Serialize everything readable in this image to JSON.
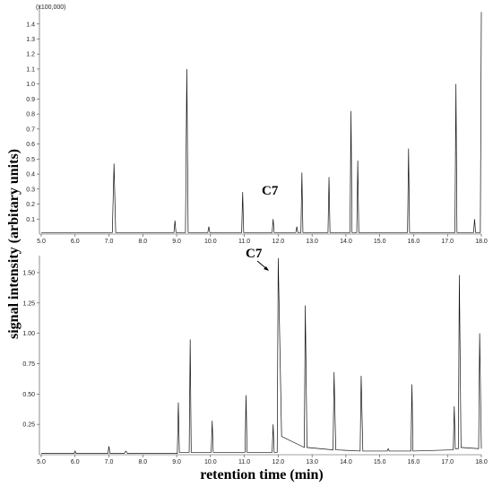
{
  "chart_data": [
    {
      "type": "line",
      "y_multiplier": "(x100,000)",
      "ylabel": "signal intensity (arbitary units)",
      "annotation": "C7",
      "x": [
        5.0,
        7.1,
        7.15,
        7.2,
        8.92,
        8.95,
        8.98,
        9.26,
        9.3,
        9.34,
        9.92,
        9.95,
        9.98,
        10.92,
        10.95,
        10.98,
        11.82,
        11.85,
        11.88,
        12.52,
        12.55,
        12.58,
        12.67,
        12.7,
        12.73,
        13.47,
        13.5,
        13.53,
        14.12,
        14.15,
        14.18,
        14.32,
        14.35,
        14.38,
        15.82,
        15.85,
        15.88,
        17.22,
        17.25,
        17.28,
        17.77,
        17.8,
        17.83,
        17.97,
        18.0
      ],
      "series": [
        {
          "color": "#111111",
          "values": [
            0.01,
            0.01,
            0.47,
            0.01,
            0.01,
            0.09,
            0.01,
            0.01,
            1.1,
            0.01,
            0.01,
            0.05,
            0.01,
            0.01,
            0.28,
            0.01,
            0.01,
            0.1,
            0.01,
            0.01,
            0.05,
            0.01,
            0.01,
            0.41,
            0.01,
            0.01,
            0.38,
            0.01,
            0.01,
            0.82,
            0.01,
            0.01,
            0.49,
            0.01,
            0.01,
            0.57,
            0.01,
            0.01,
            1.0,
            0.01,
            0.01,
            0.1,
            0.01,
            0.01,
            1.48
          ]
        }
      ],
      "xlim": [
        5.0,
        18.0
      ],
      "ylim": [
        0,
        1.53
      ],
      "xticks": [
        {
          "value": 5,
          "label": "5.0"
        },
        {
          "value": 6,
          "label": "6.0"
        },
        {
          "value": 7,
          "label": "7.0"
        },
        {
          "value": 8,
          "label": "8.0"
        },
        {
          "value": 9,
          "label": "9.0"
        },
        {
          "value": 10,
          "label": "10.0"
        },
        {
          "value": 11,
          "label": "11.0"
        },
        {
          "value": 12,
          "label": "12.0"
        },
        {
          "value": 13,
          "label": "13.0"
        },
        {
          "value": 14,
          "label": "14.0"
        },
        {
          "value": 15,
          "label": "15.0"
        },
        {
          "value": 16,
          "label": "16.0"
        },
        {
          "value": 17,
          "label": "17.0"
        },
        {
          "value": 18,
          "label": "18.0"
        }
      ],
      "yticks": [
        0.1,
        0.2,
        0.3,
        0.4,
        0.5,
        0.6,
        0.7,
        0.8,
        0.9,
        {
          "value": 1,
          "label": "1.0"
        },
        1.1,
        1.2,
        1.3,
        1.4
      ]
    },
    {
      "type": "line",
      "xlabel": "retention time (min)",
      "annotation": "C7",
      "x": [
        5.0,
        5.97,
        6.0,
        6.03,
        6.97,
        7.0,
        7.03,
        7.45,
        7.5,
        7.55,
        9.02,
        9.05,
        9.08,
        9.37,
        9.4,
        9.43,
        10.02,
        10.05,
        10.08,
        11.02,
        11.05,
        11.08,
        11.82,
        11.85,
        11.88,
        11.97,
        12.0,
        12.1,
        12.77,
        12.8,
        12.85,
        13.62,
        13.65,
        13.7,
        14.42,
        14.45,
        14.5,
        15.22,
        15.25,
        15.28,
        15.92,
        15.95,
        15.98,
        17.17,
        17.2,
        17.23,
        17.32,
        17.35,
        17.4,
        17.92,
        17.95,
        18.0
      ],
      "series": [
        {
          "color": "#111111",
          "values": [
            0.01,
            0.01,
            0.03,
            0.01,
            0.01,
            0.07,
            0.01,
            0.01,
            0.03,
            0.01,
            0.01,
            0.43,
            0.02,
            0.02,
            0.95,
            0.02,
            0.02,
            0.28,
            0.02,
            0.02,
            0.49,
            0.02,
            0.02,
            0.25,
            0.02,
            0.02,
            1.62,
            0.15,
            0.06,
            1.23,
            0.06,
            0.04,
            0.68,
            0.04,
            0.03,
            0.65,
            0.03,
            0.03,
            0.05,
            0.03,
            0.03,
            0.58,
            0.03,
            0.04,
            0.4,
            0.05,
            0.05,
            1.48,
            0.06,
            0.05,
            1.0,
            0.05
          ]
        }
      ],
      "xlim": [
        5.0,
        18.0
      ],
      "ylim": [
        0,
        1.64
      ],
      "xticks": [
        {
          "value": 5,
          "label": "5.0"
        },
        {
          "value": 6,
          "label": "6.0"
        },
        {
          "value": 7,
          "label": "7.0"
        },
        {
          "value": 8,
          "label": "8.0"
        },
        {
          "value": 9,
          "label": "9.0"
        },
        {
          "value": 10,
          "label": "10.0"
        },
        {
          "value": 11,
          "label": "11.0"
        },
        {
          "value": 12,
          "label": "12.0"
        },
        {
          "value": 13,
          "label": "13.0"
        },
        {
          "value": 14,
          "label": "14.0"
        },
        {
          "value": 15,
          "label": "15.0"
        },
        {
          "value": 16,
          "label": "16.0"
        },
        {
          "value": 17,
          "label": "17.0"
        },
        {
          "value": 18,
          "label": "18.0"
        }
      ],
      "yticks": [
        0.25,
        {
          "value": 0.5,
          "label": "0.50"
        },
        0.75,
        {
          "value": 1,
          "label": "1.00"
        },
        1.25,
        {
          "value": 1.5,
          "label": "1.50"
        }
      ]
    }
  ]
}
